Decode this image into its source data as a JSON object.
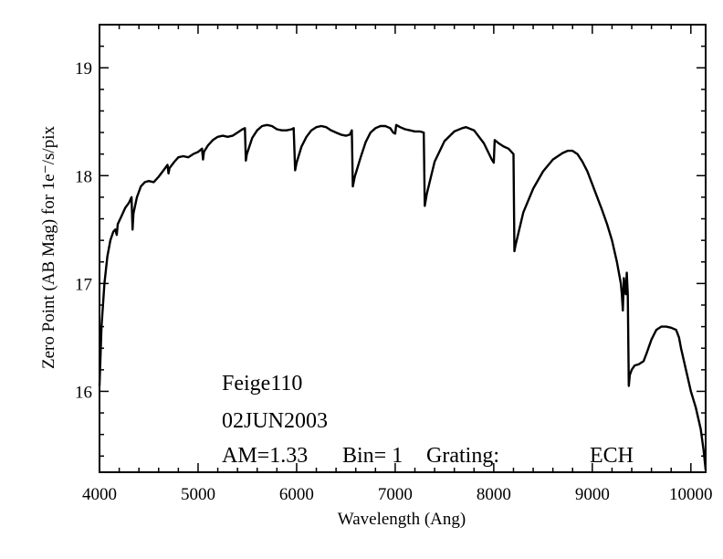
{
  "chart_data": {
    "type": "line",
    "title": "",
    "xlabel": "Wavelength (Ang)",
    "ylabel": "Zero Point (AB Mag) for 1e⁻/s/pix",
    "xlim": [
      4000,
      10150
    ],
    "ylim": [
      15.25,
      19.4
    ],
    "xticks": [
      "4000",
      "5000",
      "6000",
      "7000",
      "8000",
      "9000",
      "10000"
    ],
    "yticks": [
      "16",
      "17",
      "18",
      "19"
    ],
    "grid": false,
    "legend": "none",
    "annotations": {
      "star": "Feige110",
      "date": "02JUN2003",
      "am_label": "AM=1.33",
      "bin_label": "Bin= 1",
      "grating_label": "Grating:",
      "grating_value": "ECH"
    },
    "series": [
      {
        "color": "#000000",
        "points": [
          [
            4000,
            16.05
          ],
          [
            4020,
            16.6
          ],
          [
            4050,
            17.0
          ],
          [
            4080,
            17.25
          ],
          [
            4110,
            17.4
          ],
          [
            4140,
            17.48
          ],
          [
            4160,
            17.5
          ],
          [
            4175,
            17.45
          ],
          [
            4185,
            17.55
          ],
          [
            4220,
            17.62
          ],
          [
            4260,
            17.7
          ],
          [
            4300,
            17.75
          ],
          [
            4325,
            17.8
          ],
          [
            4335,
            17.5
          ],
          [
            4345,
            17.65
          ],
          [
            4380,
            17.8
          ],
          [
            4420,
            17.9
          ],
          [
            4460,
            17.94
          ],
          [
            4500,
            17.95
          ],
          [
            4550,
            17.94
          ],
          [
            4600,
            17.99
          ],
          [
            4650,
            18.05
          ],
          [
            4690,
            18.1
          ],
          [
            4700,
            18.02
          ],
          [
            4710,
            18.07
          ],
          [
            4760,
            18.13
          ],
          [
            4800,
            18.17
          ],
          [
            4850,
            18.18
          ],
          [
            4900,
            18.17
          ],
          [
            4950,
            18.2
          ],
          [
            5000,
            18.22
          ],
          [
            5040,
            18.25
          ],
          [
            5050,
            18.15
          ],
          [
            5060,
            18.22
          ],
          [
            5100,
            18.28
          ],
          [
            5150,
            18.33
          ],
          [
            5200,
            18.36
          ],
          [
            5250,
            18.37
          ],
          [
            5300,
            18.36
          ],
          [
            5350,
            18.37
          ],
          [
            5400,
            18.4
          ],
          [
            5450,
            18.43
          ],
          [
            5475,
            18.44
          ],
          [
            5485,
            18.14
          ],
          [
            5495,
            18.2
          ],
          [
            5550,
            18.35
          ],
          [
            5600,
            18.42
          ],
          [
            5650,
            18.46
          ],
          [
            5700,
            18.47
          ],
          [
            5750,
            18.46
          ],
          [
            5800,
            18.43
          ],
          [
            5850,
            18.42
          ],
          [
            5900,
            18.42
          ],
          [
            5950,
            18.43
          ],
          [
            5970,
            18.44
          ],
          [
            5985,
            18.05
          ],
          [
            6000,
            18.12
          ],
          [
            6050,
            18.27
          ],
          [
            6100,
            18.36
          ],
          [
            6150,
            18.42
          ],
          [
            6200,
            18.45
          ],
          [
            6250,
            18.46
          ],
          [
            6300,
            18.45
          ],
          [
            6350,
            18.42
          ],
          [
            6400,
            18.4
          ],
          [
            6450,
            18.38
          ],
          [
            6500,
            18.37
          ],
          [
            6540,
            18.38
          ],
          [
            6560,
            18.42
          ],
          [
            6570,
            17.9
          ],
          [
            6590,
            17.99
          ],
          [
            6650,
            18.17
          ],
          [
            6700,
            18.31
          ],
          [
            6750,
            18.4
          ],
          [
            6800,
            18.44
          ],
          [
            6850,
            18.46
          ],
          [
            6900,
            18.46
          ],
          [
            6950,
            18.44
          ],
          [
            6980,
            18.4
          ],
          [
            7000,
            18.39
          ],
          [
            7010,
            18.47
          ],
          [
            7050,
            18.45
          ],
          [
            7100,
            18.43
          ],
          [
            7150,
            18.42
          ],
          [
            7200,
            18.41
          ],
          [
            7250,
            18.41
          ],
          [
            7290,
            18.4
          ],
          [
            7300,
            17.72
          ],
          [
            7320,
            17.83
          ],
          [
            7400,
            18.13
          ],
          [
            7500,
            18.32
          ],
          [
            7600,
            18.41
          ],
          [
            7680,
            18.44
          ],
          [
            7720,
            18.45
          ],
          [
            7800,
            18.42
          ],
          [
            7900,
            18.3
          ],
          [
            7980,
            18.15
          ],
          [
            8000,
            18.12
          ],
          [
            8010,
            18.33
          ],
          [
            8050,
            18.3
          ],
          [
            8100,
            18.27
          ],
          [
            8150,
            18.25
          ],
          [
            8200,
            18.2
          ],
          [
            8210,
            17.3
          ],
          [
            8220,
            17.35
          ],
          [
            8300,
            17.66
          ],
          [
            8400,
            17.88
          ],
          [
            8500,
            18.04
          ],
          [
            8600,
            18.15
          ],
          [
            8700,
            18.21
          ],
          [
            8750,
            18.23
          ],
          [
            8800,
            18.23
          ],
          [
            8850,
            18.2
          ],
          [
            8900,
            18.13
          ],
          [
            8950,
            18.04
          ],
          [
            9000,
            17.92
          ],
          [
            9050,
            17.8
          ],
          [
            9100,
            17.68
          ],
          [
            9150,
            17.55
          ],
          [
            9200,
            17.4
          ],
          [
            9250,
            17.2
          ],
          [
            9290,
            17.0
          ],
          [
            9300,
            16.9
          ],
          [
            9310,
            16.75
          ],
          [
            9320,
            17.05
          ],
          [
            9340,
            16.9
          ],
          [
            9350,
            17.1
          ],
          [
            9360,
            16.9
          ],
          [
            9370,
            16.05
          ],
          [
            9380,
            16.15
          ],
          [
            9400,
            16.2
          ],
          [
            9430,
            16.24
          ],
          [
            9470,
            16.25
          ],
          [
            9520,
            16.28
          ],
          [
            9550,
            16.35
          ],
          [
            9600,
            16.48
          ],
          [
            9650,
            16.57
          ],
          [
            9700,
            16.6
          ],
          [
            9750,
            16.6
          ],
          [
            9800,
            16.59
          ],
          [
            9850,
            16.57
          ],
          [
            9880,
            16.5
          ],
          [
            9900,
            16.4
          ],
          [
            9950,
            16.2
          ],
          [
            10000,
            16.0
          ],
          [
            10050,
            15.85
          ],
          [
            10100,
            15.65
          ],
          [
            10130,
            15.45
          ],
          [
            10150,
            15.27
          ]
        ]
      }
    ]
  }
}
